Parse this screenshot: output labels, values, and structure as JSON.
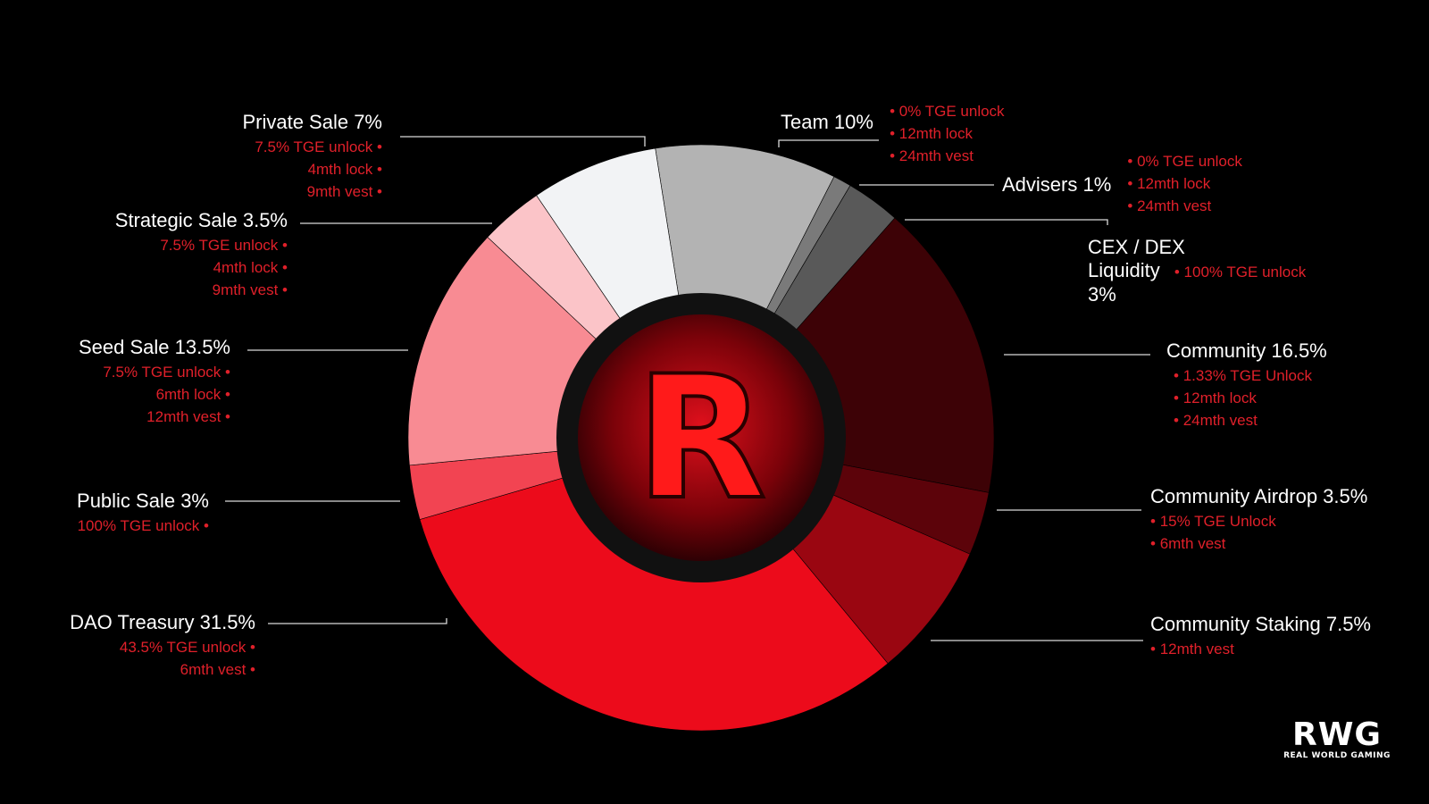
{
  "chart_data": {
    "type": "pie",
    "style": "donut",
    "start_angle_deg": -9,
    "center_glyph": "R",
    "slices": [
      {
        "label": "Team 10%",
        "value": 10,
        "color": "#b3b3b3",
        "notes": [
          "0% TGE unlock",
          "12mth lock",
          "24mth vest"
        ]
      },
      {
        "label": "Advisers 1%",
        "value": 1,
        "color": "#7a7a7a",
        "notes": [
          "0% TGE unlock",
          "12mth lock",
          "24mth vest"
        ]
      },
      {
        "label": "CEX / DEX Liquidity 3%",
        "title_lines": [
          "CEX / DEX",
          "Liquidity",
          "3%"
        ],
        "value": 3,
        "color": "#595959",
        "notes": [
          "100% TGE unlock"
        ]
      },
      {
        "label": "Community 16.5%",
        "value": 16.5,
        "color": "#3d0206",
        "notes": [
          "1.33% TGE Unlock",
          "12mth lock",
          "24mth vest"
        ]
      },
      {
        "label": "Community Airdrop 3.5%",
        "value": 3.5,
        "color": "#5c030a",
        "notes": [
          "15% TGE Unlock",
          "6mth vest"
        ]
      },
      {
        "label": "Community Staking 7.5%",
        "value": 7.5,
        "color": "#9a0611",
        "notes": [
          "12mth vest"
        ]
      },
      {
        "label": "DAO Treasury 31.5%",
        "value": 31.5,
        "color": "#ec0b1b",
        "notes": [
          "43.5% TGE unlock",
          "6mth vest"
        ]
      },
      {
        "label": "Public Sale 3%",
        "value": 3,
        "color": "#f24452",
        "notes": [
          "100% TGE unlock"
        ]
      },
      {
        "label": "Seed Sale 13.5%",
        "value": 13.5,
        "color": "#f88b93",
        "notes": [
          "7.5% TGE unlock",
          "6mth lock",
          "12mth vest"
        ]
      },
      {
        "label": "Strategic Sale 3.5%",
        "value": 3.5,
        "color": "#fbc4c8",
        "notes": [
          "7.5% TGE unlock",
          "4mth lock",
          "9mth vest"
        ]
      },
      {
        "label": "Private Sale 7%",
        "value": 7,
        "color": "#f2f3f5",
        "notes": [
          "7.5% TGE unlock",
          "4mth lock",
          "9mth vest"
        ]
      }
    ]
  },
  "brand": {
    "logo_text": "RWG",
    "logo_subtext": "REAL WORLD GAMING"
  }
}
